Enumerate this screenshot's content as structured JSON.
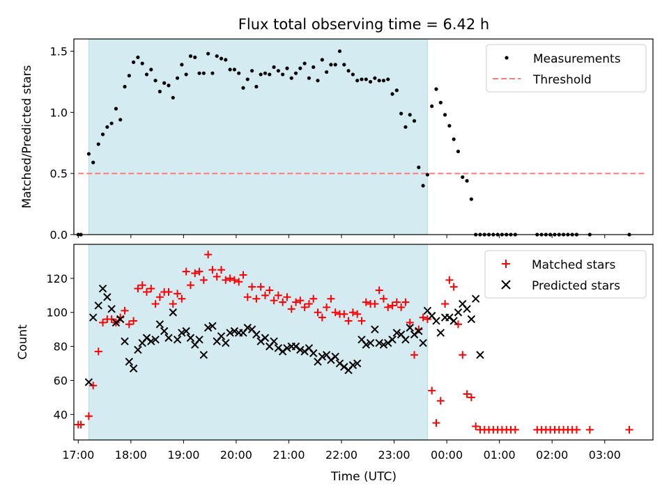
{
  "figure": {
    "title": "Flux total observing time = 6.42 h",
    "xlabel": "Time (UTC)"
  },
  "chart_data": [
    {
      "type": "scatter",
      "panel": "top",
      "ylabel": "Matched/Predicted stars",
      "xlim": [
        "16:55",
        "03:55"
      ],
      "ylim": [
        0,
        1.6
      ],
      "y_ticks": [
        "0.0",
        "0.5",
        "1.0",
        "1.5"
      ],
      "shaded_span": [
        "17:12",
        "23:38"
      ],
      "shaded_color": "#d4ebf1",
      "legend_position": "upper right",
      "threshold": {
        "name": "Threshold",
        "value": 0.5,
        "x_range": [
          "17:00",
          "03:45"
        ],
        "color": "#ff7a7a"
      },
      "series": [
        {
          "name": "Measurements",
          "color": "#000000",
          "marker": "dot",
          "x": [
            "17:00",
            "17:03",
            "17:12",
            "17:17",
            "17:23",
            "17:28",
            "17:33",
            "17:38",
            "17:43",
            "17:48",
            "17:53",
            "17:58",
            "18:03",
            "18:08",
            "18:13",
            "18:18",
            "18:23",
            "18:28",
            "18:33",
            "18:38",
            "18:43",
            "18:48",
            "18:53",
            "18:58",
            "19:03",
            "19:08",
            "19:13",
            "19:18",
            "19:23",
            "19:28",
            "19:33",
            "19:38",
            "19:43",
            "19:48",
            "19:53",
            "19:58",
            "20:03",
            "20:08",
            "20:13",
            "20:18",
            "20:23",
            "20:28",
            "20:33",
            "20:38",
            "20:43",
            "20:48",
            "20:53",
            "20:58",
            "21:03",
            "21:08",
            "21:13",
            "21:18",
            "21:23",
            "21:28",
            "21:33",
            "21:38",
            "21:43",
            "21:48",
            "21:53",
            "21:58",
            "22:03",
            "22:08",
            "22:13",
            "22:18",
            "22:23",
            "22:28",
            "22:33",
            "22:38",
            "22:43",
            "22:48",
            "22:53",
            "22:58",
            "23:03",
            "23:08",
            "23:13",
            "23:18",
            "23:23",
            "23:28",
            "23:33",
            "23:38",
            "23:43",
            "23:48",
            "23:53",
            "23:58",
            "00:03",
            "00:08",
            "00:13",
            "00:18",
            "00:23",
            "00:28",
            "00:33",
            "00:38",
            "00:43",
            "00:48",
            "00:53",
            "00:58",
            "01:03",
            "01:08",
            "01:13",
            "01:18",
            "01:43",
            "01:48",
            "01:53",
            "01:58",
            "02:03",
            "02:08",
            "02:13",
            "02:18",
            "02:23",
            "02:28",
            "02:43",
            "03:28"
          ],
          "y": [
            0.0,
            0.0,
            0.66,
            0.59,
            0.74,
            0.82,
            0.88,
            0.91,
            1.03,
            0.94,
            1.21,
            1.3,
            1.41,
            1.45,
            1.4,
            1.31,
            1.35,
            1.26,
            1.17,
            1.24,
            1.22,
            1.12,
            1.28,
            1.39,
            1.31,
            1.46,
            1.45,
            1.32,
            1.32,
            1.48,
            1.32,
            1.46,
            1.44,
            1.43,
            1.35,
            1.35,
            1.32,
            1.2,
            1.27,
            1.34,
            1.21,
            1.31,
            1.32,
            1.31,
            1.37,
            1.34,
            1.31,
            1.36,
            1.28,
            1.32,
            1.36,
            1.4,
            1.28,
            1.37,
            1.26,
            1.43,
            1.33,
            1.39,
            1.39,
            1.5,
            1.39,
            1.34,
            1.31,
            1.26,
            1.27,
            1.27,
            1.25,
            1.28,
            1.26,
            1.26,
            1.27,
            1.15,
            1.18,
            0.99,
            0.88,
            0.98,
            0.93,
            0.55,
            0.4,
            0.49,
            1.05,
            1.19,
            1.08,
            0.98,
            0.89,
            0.78,
            0.68,
            0.47,
            0.44,
            0.29,
            0.0,
            0.0,
            0.0,
            0.0,
            0.0,
            0.0,
            0.0,
            0.0,
            0.0,
            0.0,
            0.0,
            0.0,
            0.0,
            0.0,
            0.0,
            0.0,
            0.0,
            0.0,
            0.0,
            0.0,
            0.0,
            0.0
          ]
        }
      ]
    },
    {
      "type": "scatter",
      "panel": "bottom",
      "ylabel": "Count",
      "xlim": [
        "16:55",
        "03:55"
      ],
      "ylim": [
        25,
        140
      ],
      "y_ticks": [
        "40",
        "60",
        "80",
        "100",
        "120"
      ],
      "x_ticks": [
        "17:00",
        "18:00",
        "19:00",
        "20:00",
        "21:00",
        "22:00",
        "23:00",
        "00:00",
        "01:00",
        "02:00",
        "03:00"
      ],
      "shaded_span": [
        "17:12",
        "23:38"
      ],
      "legend_position": "upper right",
      "series": [
        {
          "name": "Matched stars",
          "color": "#ff0000",
          "marker": "plus",
          "x": [
            "17:00",
            "17:03",
            "17:12",
            "17:17",
            "17:23",
            "17:28",
            "17:33",
            "17:38",
            "17:43",
            "17:48",
            "17:53",
            "17:58",
            "18:03",
            "18:08",
            "18:13",
            "18:18",
            "18:23",
            "18:28",
            "18:33",
            "18:38",
            "18:43",
            "18:48",
            "18:53",
            "18:58",
            "19:03",
            "19:08",
            "19:13",
            "19:18",
            "19:23",
            "19:28",
            "19:33",
            "19:38",
            "19:43",
            "19:48",
            "19:53",
            "19:58",
            "20:03",
            "20:08",
            "20:13",
            "20:18",
            "20:23",
            "20:28",
            "20:33",
            "20:38",
            "20:43",
            "20:48",
            "20:53",
            "20:58",
            "21:03",
            "21:08",
            "21:13",
            "21:18",
            "21:23",
            "21:28",
            "21:33",
            "21:38",
            "21:43",
            "21:48",
            "21:53",
            "21:58",
            "22:03",
            "22:08",
            "22:13",
            "22:18",
            "22:23",
            "22:28",
            "22:33",
            "22:38",
            "22:43",
            "22:48",
            "22:53",
            "22:58",
            "23:03",
            "23:08",
            "23:13",
            "23:18",
            "23:23",
            "23:28",
            "23:33",
            "23:38",
            "23:43",
            "23:48",
            "23:53",
            "23:58",
            "00:03",
            "00:08",
            "00:13",
            "00:18",
            "00:23",
            "00:28",
            "00:33",
            "00:38",
            "00:43",
            "00:48",
            "00:53",
            "00:58",
            "01:03",
            "01:08",
            "01:13",
            "01:18",
            "01:43",
            "01:48",
            "01:53",
            "01:58",
            "02:03",
            "02:08",
            "02:13",
            "02:18",
            "02:23",
            "02:28",
            "02:43",
            "03:28"
          ],
          "y": [
            34,
            34,
            39,
            57,
            77,
            94,
            96,
            96,
            94,
            97,
            101,
            93,
            95,
            114,
            116,
            112,
            114,
            105,
            109,
            112,
            112,
            105,
            111,
            108,
            124,
            116,
            123,
            124,
            119,
            134,
            125,
            121,
            125,
            119,
            120,
            119,
            118,
            122,
            109,
            115,
            108,
            115,
            110,
            113,
            107,
            110,
            106,
            109,
            102,
            106,
            107,
            103,
            105,
            108,
            100,
            97,
            103,
            108,
            100,
            99,
            99,
            95,
            100,
            99,
            95,
            106,
            105,
            105,
            113,
            108,
            103,
            104,
            106,
            103,
            106,
            94,
            75,
            90,
            97,
            96,
            54,
            35,
            48,
            105,
            119,
            115,
            93,
            75,
            52,
            50,
            33,
            31,
            31,
            31,
            31,
            31,
            31,
            31,
            31,
            31,
            31,
            31,
            31,
            31,
            31,
            31,
            31,
            31,
            31,
            31,
            31,
            31
          ]
        },
        {
          "name": "Predicted stars",
          "color": "#000000",
          "marker": "x",
          "x": [
            "17:12",
            "17:17",
            "17:23",
            "17:28",
            "17:33",
            "17:38",
            "17:43",
            "17:48",
            "17:53",
            "17:58",
            "18:03",
            "18:08",
            "18:13",
            "18:18",
            "18:23",
            "18:28",
            "18:33",
            "18:38",
            "18:43",
            "18:48",
            "18:53",
            "18:58",
            "19:03",
            "19:08",
            "19:13",
            "19:18",
            "19:23",
            "19:28",
            "19:33",
            "19:38",
            "19:43",
            "19:48",
            "19:53",
            "19:58",
            "20:03",
            "20:08",
            "20:13",
            "20:18",
            "20:23",
            "20:28",
            "20:33",
            "20:38",
            "20:43",
            "20:48",
            "20:53",
            "20:58",
            "21:03",
            "21:08",
            "21:13",
            "21:18",
            "21:23",
            "21:28",
            "21:33",
            "21:38",
            "21:43",
            "21:48",
            "21:53",
            "21:58",
            "22:03",
            "22:08",
            "22:13",
            "22:18",
            "22:23",
            "22:28",
            "22:33",
            "22:38",
            "22:43",
            "22:48",
            "22:53",
            "22:58",
            "23:03",
            "23:08",
            "23:13",
            "23:18",
            "23:23",
            "23:28",
            "23:33",
            "23:38",
            "23:43",
            "23:48",
            "23:53",
            "23:58",
            "00:03",
            "00:08",
            "00:13",
            "00:18",
            "00:23",
            "00:28",
            "00:33",
            "00:38"
          ],
          "y": [
            59,
            97,
            104,
            114,
            109,
            102,
            94,
            96,
            83,
            71,
            67,
            78,
            82,
            85,
            83,
            84,
            93,
            89,
            85,
            100,
            84,
            88,
            89,
            85,
            81,
            84,
            75,
            91,
            92,
            83,
            86,
            82,
            88,
            89,
            88,
            88,
            91,
            90,
            87,
            83,
            85,
            80,
            83,
            79,
            77,
            79,
            80,
            80,
            78,
            77,
            79,
            76,
            71,
            74,
            75,
            72,
            74,
            70,
            68,
            66,
            69,
            70,
            84,
            81,
            82,
            90,
            82,
            81,
            82,
            84,
            88,
            87,
            84,
            91,
            87,
            89,
            82,
            101,
            98,
            95,
            88,
            97,
            97,
            95,
            100,
            105,
            102,
            96,
            108,
            75
          ]
        }
      ]
    }
  ]
}
